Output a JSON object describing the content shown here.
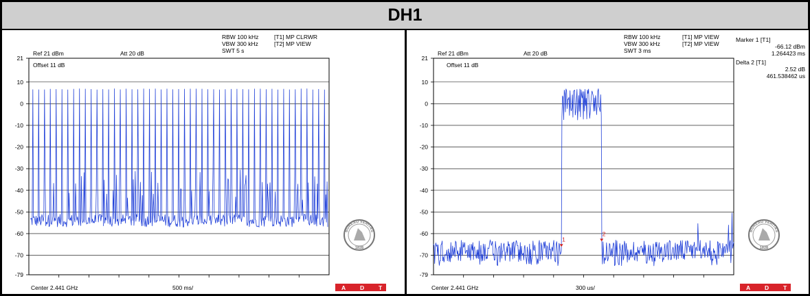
{
  "title": "DH1",
  "colors": {
    "trace": "#1f3fd8",
    "marker": "#d02020",
    "adt_bar": "#d8232a",
    "banner_bg": "#cfcfcf"
  },
  "logo": {
    "text_top": "BUREAU VERITAS",
    "year": "1828",
    "letters": [
      "A",
      "D",
      "T"
    ]
  },
  "chart_data": [
    {
      "type": "line",
      "ref_label": "Ref 21 dBm",
      "att_label": "Att  20 dB",
      "offset_label": "Offset 11 dB",
      "settings": [
        "RBW 100 kHz",
        "VBW 300 kHz",
        "SWT 5 s"
      ],
      "traces_info": [
        "[T1] MP CLRWR",
        "[T2] MP VIEW"
      ],
      "center_label": "Center 2.441 GHz",
      "span_label": "500 ms/",
      "ylim": [
        -79,
        21
      ],
      "y_ticks": [
        "21",
        "10",
        "0",
        "-10",
        "-20",
        "-30",
        "-40",
        "-50",
        "-60",
        "-70",
        "-79"
      ],
      "x_divisions": 10,
      "pattern": "pulses",
      "baseline_dBm": [
        -57,
        -51
      ],
      "pulse_peak_dBm": 7,
      "series": [
        {
          "values": [
            -55,
            -54,
            7,
            -56,
            -53,
            7,
            -30,
            -55,
            7,
            -54,
            -52,
            7,
            -55,
            7,
            -33,
            -54,
            7,
            -56,
            7,
            -53,
            -55,
            7,
            -54,
            7,
            -31,
            -55,
            7,
            -53,
            7,
            -55,
            -54,
            7,
            -56,
            7,
            -32,
            -55,
            7,
            -54,
            7,
            -55,
            -53,
            7,
            -55,
            7,
            -30,
            -54,
            7,
            -56,
            7,
            -55
          ]
        }
      ],
      "markers": []
    },
    {
      "type": "line",
      "ref_label": "Ref 21 dBm",
      "att_label": "Att  20 dB",
      "offset_label": "Offset 11 dB",
      "settings": [
        "RBW 100 kHz",
        "VBW 300 kHz",
        "SWT 3 ms"
      ],
      "traces_info": [
        "[T1] MP VIEW",
        "[T2] MP VIEW"
      ],
      "center_label": "Center 2.441 GHz",
      "span_label": "300 us/",
      "ylim": [
        -79,
        21
      ],
      "y_ticks": [
        "21",
        "10",
        "0",
        "-10",
        "-20",
        "-30",
        "-40",
        "-50",
        "-60",
        "-70",
        "-79"
      ],
      "x_divisions": 10,
      "pattern": "burst",
      "noise_floor_dBm": [
        -74,
        -62
      ],
      "burst_level_dBm": [
        -8,
        7
      ],
      "burst_start_ms": 1.264423,
      "burst_width_us": 461.538462,
      "series": [
        {
          "values": [
            -64,
            -63,
            -66,
            -62,
            -64,
            -67,
            -63,
            -65,
            -64,
            -66,
            -63,
            -64,
            -65,
            -62,
            -66,
            -64,
            -63,
            -65,
            -67,
            -64,
            -63,
            -65,
            -64,
            -66,
            -62,
            -64,
            5,
            6,
            2,
            3,
            -2,
            4,
            1,
            -5,
            3,
            4,
            2,
            -3,
            4,
            5,
            -1,
            3,
            2,
            -4,
            4,
            -1,
            3,
            5,
            -2,
            4,
            -63,
            -65,
            -64,
            -62,
            -66,
            -63,
            -65,
            -64,
            -61,
            -63,
            -65,
            -62,
            -64,
            -66,
            -63,
            -61,
            -64,
            -62,
            -65,
            -63,
            -60,
            -64,
            -62,
            -65,
            -63,
            -61,
            -64,
            -62,
            -58,
            -63
          ]
        }
      ],
      "markers": [
        {
          "label": "1",
          "x_ms": 1.264423,
          "value_dBm": -66.12
        },
        {
          "label": "2",
          "x_ms": 1.725961,
          "value_dBm": -63.6
        }
      ],
      "marker_readout": {
        "marker1_title": "Marker 1 [T1]",
        "marker1_level": "-66.12 dBm",
        "marker1_time": "1.264423 ms",
        "delta2_title": "Delta 2 [T1]",
        "delta2_level": "2.52 dB",
        "delta2_time": "461.538462 us"
      }
    }
  ]
}
